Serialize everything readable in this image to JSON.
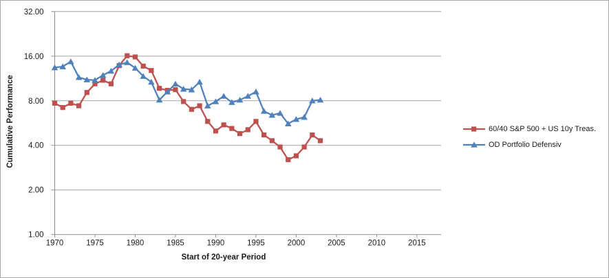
{
  "chart_data": {
    "type": "line",
    "title": "",
    "xlabel": "Start of 20-year Period",
    "ylabel": "Cumulative Performance",
    "grid": "horizontal",
    "legend_position": "right",
    "x_axis": {
      "min": 1970,
      "max": 2018,
      "ticks": [
        1970,
        1975,
        1980,
        1985,
        1990,
        1995,
        2000,
        2005,
        2010,
        2015
      ],
      "tick_labels": [
        "1970",
        "1975",
        "1980",
        "1985",
        "1990",
        "1995",
        "2000",
        "2005",
        "2010",
        "2015"
      ]
    },
    "y_axis": {
      "scale": "log2",
      "min": 1,
      "max": 32,
      "ticks": [
        1,
        2,
        4,
        8,
        16,
        32
      ],
      "tick_labels": [
        "1.00",
        "2.00",
        "4.00",
        "8.00",
        "16.00",
        "32.00"
      ]
    },
    "x": [
      1970,
      1971,
      1972,
      1973,
      1974,
      1975,
      1976,
      1977,
      1978,
      1979,
      1980,
      1981,
      1982,
      1983,
      1984,
      1985,
      1986,
      1987,
      1988,
      1989,
      1990,
      1991,
      1992,
      1993,
      1994,
      1995,
      1996,
      1997,
      1998,
      1999,
      2000,
      2001,
      2002,
      2003
    ],
    "series": [
      {
        "name": "60/40 S&P 500 + US 10y Treas.",
        "color": "#C0504D",
        "marker": "square",
        "values": [
          7.7,
          7.2,
          7.7,
          7.4,
          9.1,
          10.4,
          11.0,
          10.4,
          13.8,
          16.1,
          15.8,
          13.7,
          12.8,
          9.7,
          9.4,
          9.5,
          7.9,
          7.0,
          7.4,
          5.8,
          5.0,
          5.5,
          5.2,
          4.8,
          5.1,
          5.8,
          4.7,
          4.3,
          3.9,
          3.2,
          3.4,
          3.9,
          4.7,
          4.3
        ]
      },
      {
        "name": "OD Portfolio Defensiv",
        "color": "#4F81BD",
        "marker": "triangle",
        "values": [
          13.4,
          13.6,
          14.7,
          11.5,
          11.1,
          11.0,
          11.9,
          12.7,
          14.0,
          14.5,
          13.3,
          11.7,
          10.7,
          8.1,
          9.2,
          10.4,
          9.6,
          9.5,
          10.7,
          7.4,
          7.9,
          8.6,
          7.8,
          8.1,
          8.6,
          9.2,
          6.8,
          6.4,
          6.6,
          5.6,
          6.0,
          6.2,
          8.0,
          8.1
        ]
      }
    ],
    "colors": {
      "gridline": "#A6A6A6",
      "axis": "#8C8C8C",
      "text": "#1A1A1A",
      "background": "#FFFFFF"
    }
  }
}
